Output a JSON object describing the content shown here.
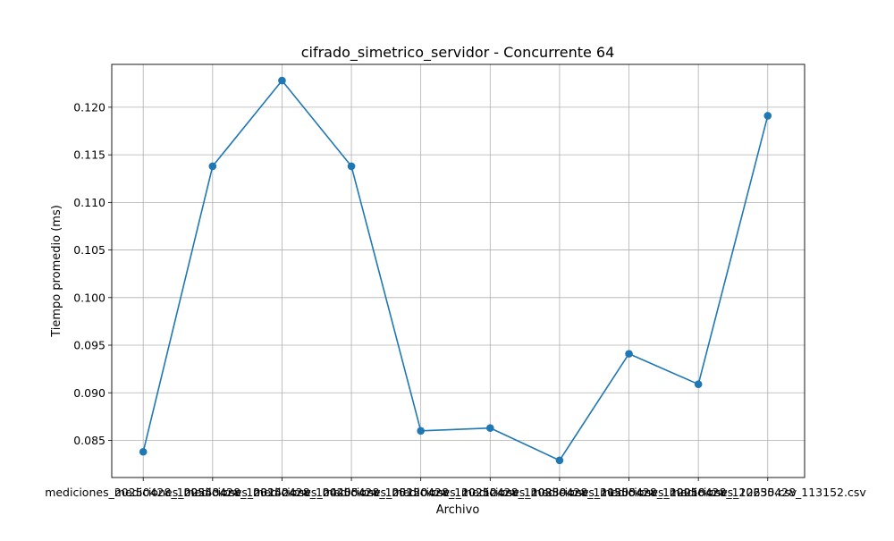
{
  "chart_data": {
    "type": "line",
    "title": "cifrado_simetrico_servidor - Concurrente 64",
    "xlabel": "Archivo",
    "ylabel": "Tiempo promedio (ms)",
    "categories": [
      "mediciones_20250428_102543.csv",
      "mediciones_20250428_103142.csv",
      "mediciones_20250428_104405.csv",
      "mediciones_20250428_105120.csv",
      "mediciones_20250428_110212.csv",
      "mediciones_20250428_110839.csv",
      "mediciones_20250428_111505.csv",
      "mediciones_20250428_112018.csv",
      "mediciones_20250428_112635.csv",
      "mediciones_20250428_113152.csv"
    ],
    "series": [
      {
        "values": [
          0.0838,
          0.1138,
          0.1228,
          0.1138,
          0.086,
          0.0863,
          0.0829,
          0.0941,
          0.0909,
          0.1191
        ],
        "color": "#1f77b4",
        "marker": "circle"
      }
    ],
    "ylim": [
      0.0811,
      0.1245
    ],
    "yticks": [
      0.085,
      0.09,
      0.095,
      0.1,
      0.105,
      0.11,
      0.115,
      0.12
    ],
    "ytick_labels": [
      "0.085",
      "0.090",
      "0.095",
      "0.100",
      "0.105",
      "0.110",
      "0.115",
      "0.120"
    ],
    "grid": true
  }
}
